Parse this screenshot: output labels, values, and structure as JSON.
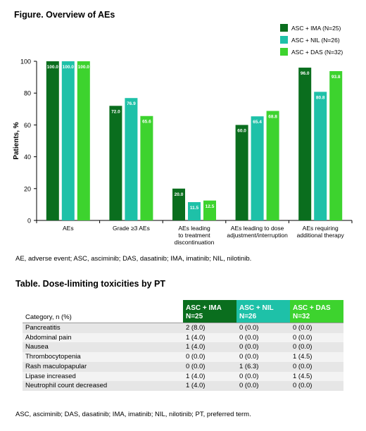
{
  "figure": {
    "title": "Figure. Overview of AEs",
    "footnote": "AE, adverse event; ASC, asciminib; DAS, dasatinib; IMA, imatinib; NIL, nilotinib."
  },
  "chart_data": {
    "type": "bar",
    "categories": [
      [
        "AEs"
      ],
      [
        "Grade ≥3 AEs"
      ],
      [
        "AEs leading",
        "to treatment",
        "discontinuation"
      ],
      [
        "AEs leading to dose",
        "adjustment/interruption"
      ],
      [
        "AEs requiring",
        "additional therapy"
      ]
    ],
    "series": [
      {
        "name": "ASC + IMA (N=25)",
        "color": "#0a6e1e",
        "values": [
          100.0,
          72.0,
          20.0,
          60.0,
          96.0
        ]
      },
      {
        "name": "ASC + NIL (N=26)",
        "color": "#1ec1a8",
        "values": [
          100.0,
          76.9,
          11.5,
          65.4,
          80.8
        ]
      },
      {
        "name": "ASC + DAS (N=32)",
        "color": "#3dd32e",
        "values": [
          100.0,
          65.6,
          12.5,
          68.8,
          93.8
        ]
      }
    ],
    "ylabel": "Patients, %",
    "ylim": [
      0,
      100
    ],
    "yticks": [
      "0",
      "20",
      "40",
      "60",
      "80",
      "100"
    ],
    "grid": false,
    "legend_position": "top-right"
  },
  "table": {
    "title": "Table. Dose-limiting toxicities by PT",
    "header": {
      "category": "Category, n (%)",
      "groups": [
        {
          "name": "ASC + IMA",
          "n": "N=25",
          "color": "#0a6e1e"
        },
        {
          "name": "ASC + NIL",
          "n": "N=26",
          "color": "#1ec1a8"
        },
        {
          "name": "ASC + DAS",
          "n": "N=32",
          "color": "#3dd32e"
        }
      ]
    },
    "rows": [
      [
        "Pancreatitis",
        "2 (8.0)",
        "0 (0.0)",
        "0 (0.0)"
      ],
      [
        "Abdominal pain",
        "1 (4.0)",
        "0 (0.0)",
        "0 (0.0)"
      ],
      [
        "Nausea",
        "1 (4.0)",
        "0 (0.0)",
        "0 (0.0)"
      ],
      [
        "Thrombocytopenia",
        "0 (0.0)",
        "0 (0.0)",
        "1 (4.5)"
      ],
      [
        "Rash maculopapular",
        "0 (0.0)",
        "1 (6.3)",
        "0 (0.0)"
      ],
      [
        "Lipase increased",
        "1 (4.0)",
        "0 (0.0)",
        "1 (4.5)"
      ],
      [
        "Neutrophil count decreased",
        "1 (4.0)",
        "0 (0.0)",
        "0 (0.0)"
      ]
    ],
    "footnote": "ASC, asciminib; DAS, dasatinib; IMA, imatinib; NIL, nilotinib; PT, preferred term."
  }
}
